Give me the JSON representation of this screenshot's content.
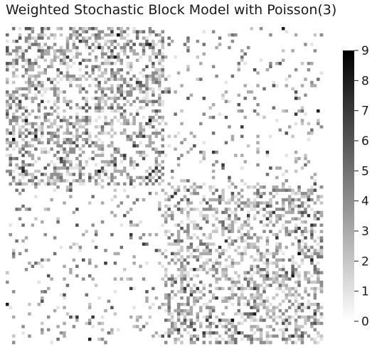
{
  "chart_data": {
    "type": "heatmap",
    "title": "Weighted Stochastic Block Model with Poisson(3)",
    "colormap": {
      "low_color": "#ffffff",
      "high_color": "#000000"
    },
    "colorbar": {
      "vmin": 0,
      "vmax": 9,
      "ticks": [
        0,
        1,
        2,
        3,
        4,
        5,
        6,
        7,
        8,
        9
      ],
      "tick_labels": [
        "0",
        "1",
        "2",
        "3",
        "4",
        "5",
        "6",
        "7",
        "8",
        "9"
      ]
    },
    "matrix": {
      "n_nodes": 100,
      "blocks": [
        {
          "name": "",
          "nodes": 50
        },
        {
          "name": "",
          "nodes": 50
        }
      ],
      "within_block_edge_probability": 0.5,
      "between_block_edge_probability": 0.1,
      "edge_weight_distribution": "Poisson",
      "poisson_lambda": 3,
      "diagonal_empty": true
    }
  }
}
